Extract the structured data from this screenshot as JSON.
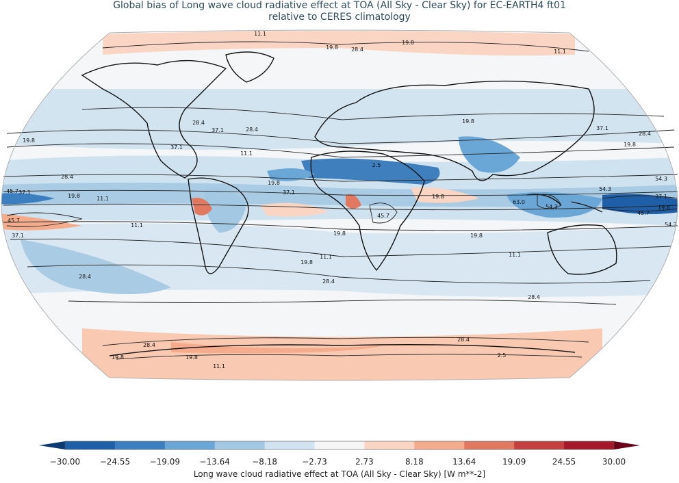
{
  "title": {
    "line1": "Global bias of Long wave cloud radiative effect at TOA (All Sky - Clear Sky) for EC-EARTH4 ft01",
    "line2": "relative to CERES climatology"
  },
  "contour_labels": [
    "11.1",
    "19.8",
    "28.4",
    "19.8",
    "11.1",
    "28.4",
    "37.1",
    "28.4",
    "19.8",
    "37.1",
    "28.4",
    "19.8",
    "11.1",
    "19.8",
    "28.4",
    "45.7",
    "37.1",
    "19.8",
    "11.1",
    "37.1",
    "54.3",
    "45.7",
    "11.1",
    "37.1",
    "19.8",
    "11.1",
    "19.8",
    "28.4",
    "28.4",
    "11.1",
    "28.4",
    "28.4",
    "19.8",
    "11.1",
    "2.5",
    "19.8",
    "37.1",
    "28.4",
    "19.8",
    "45.7",
    "54.3",
    "54.3",
    "63.0",
    "54.3",
    "45.7",
    "19.8",
    "37.1",
    "19.8",
    "2.5",
    "19.8"
  ],
  "colorbar": {
    "ticks": [
      "−30.00",
      "−24.55",
      "−19.09",
      "−13.64",
      "−8.18",
      "−2.73",
      "2.73",
      "8.18",
      "13.64",
      "19.09",
      "24.55",
      "30.00"
    ],
    "label": "Long wave cloud radiative effect at TOA (All Sky - Clear Sky) [W m**-2]",
    "colors": [
      "#1f5fa8",
      "#3b7fc0",
      "#6aa6d6",
      "#a3c8e4",
      "#d1e3f0",
      "#f5f5f5",
      "#fbd5c4",
      "#f4ac8d",
      "#e0795f",
      "#c44040",
      "#a5172b"
    ],
    "under_color": "#0d3a73",
    "over_color": "#6b0019"
  },
  "chart_data": {
    "type": "heatmap",
    "projection": "Robinson",
    "field": "LW CRE bias (model minus CERES)",
    "vmin": -30.0,
    "vmax": 30.0,
    "levels": [
      -30.0,
      -24.55,
      -19.09,
      -13.64,
      -8.18,
      -2.73,
      2.73,
      8.18,
      13.64,
      19.09,
      24.55,
      30.0
    ],
    "contour_levels": [
      2.5,
      11.1,
      19.8,
      28.4,
      37.1,
      45.7,
      54.3,
      63.0
    ]
  }
}
